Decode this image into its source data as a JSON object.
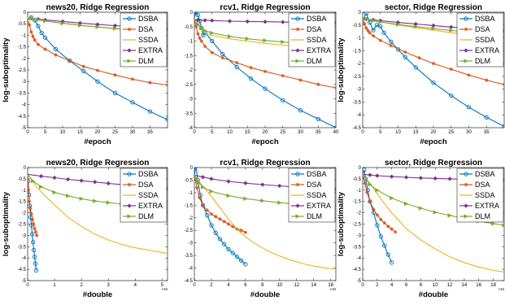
{
  "legend_labels": [
    "DSBA",
    "DSA",
    "SSDA",
    "EXTRA",
    "DLM"
  ],
  "colors": {
    "DSBA": "#0072BD",
    "DSA": "#D95319",
    "SSDA": "#EDB120",
    "EXTRA": "#7E2F8E",
    "DLM": "#77AC30"
  },
  "chart_data": [
    {
      "type": "line",
      "title": "news20, Ridge Regression",
      "xlabel": "#epoch",
      "ylabel": "log-suboptimality",
      "xlim": [
        0,
        40
      ],
      "ylim": [
        -5,
        0
      ],
      "xticks": [
        "0",
        "5",
        "10",
        "15",
        "20",
        "25",
        "30",
        "35"
      ],
      "yticks": [
        "-5",
        "-4.5",
        "-4",
        "-3.5",
        "-3",
        "-2.5",
        "-2",
        "-1.5",
        "-1",
        "-0.5",
        "0"
      ],
      "x_exponent": "",
      "series": [
        {
          "name": "DSBA",
          "x": [
            0,
            1,
            2,
            3,
            4,
            5,
            8,
            12,
            16,
            20,
            25,
            30,
            35,
            40
          ],
          "y": [
            -0.3,
            -0.22,
            -0.35,
            -0.6,
            -0.9,
            -1.1,
            -1.6,
            -2.1,
            -2.55,
            -3.0,
            -3.5,
            -3.9,
            -4.3,
            -4.65
          ]
        },
        {
          "name": "DSA",
          "x": [
            0,
            0.5,
            1,
            1.5,
            2,
            3,
            5,
            8,
            12,
            16,
            20,
            25,
            30,
            35,
            40
          ],
          "y": [
            -0.3,
            -0.55,
            -0.85,
            -1.05,
            -1.2,
            -1.4,
            -1.6,
            -1.85,
            -2.1,
            -2.35,
            -2.52,
            -2.72,
            -2.9,
            -3.05,
            -3.15
          ]
        },
        {
          "name": "SSDA",
          "x": [
            0,
            1,
            3,
            5,
            10,
            15,
            20,
            25,
            30,
            35,
            40
          ],
          "y": [
            -0.3,
            -0.27,
            -0.33,
            -0.38,
            -0.48,
            -0.56,
            -0.64,
            -0.72,
            -0.78,
            -0.85,
            -0.9
          ]
        },
        {
          "name": "EXTRA",
          "x": [
            0,
            1,
            3,
            5,
            10,
            15,
            20,
            25,
            30,
            35,
            40
          ],
          "y": [
            -0.3,
            -0.27,
            -0.3,
            -0.33,
            -0.4,
            -0.47,
            -0.53,
            -0.58,
            -0.63,
            -0.68,
            -0.72
          ]
        },
        {
          "name": "DLM",
          "x": [
            0,
            1,
            3,
            5,
            10,
            15,
            20,
            25,
            30,
            35,
            40
          ],
          "y": [
            -0.3,
            -0.26,
            -0.32,
            -0.38,
            -0.48,
            -0.57,
            -0.64,
            -0.7,
            -0.76,
            -0.81,
            -0.85
          ]
        }
      ]
    },
    {
      "type": "line",
      "title": "rcv1, Ridge Regression",
      "xlabel": "#epoch",
      "ylabel": "",
      "xlim": [
        0,
        40
      ],
      "ylim": [
        -4,
        0
      ],
      "xticks": [
        "0",
        "5",
        "10",
        "15",
        "20",
        "25",
        "30",
        "35",
        "40"
      ],
      "yticks": [
        "-4",
        "-3.5",
        "-3",
        "-2.5",
        "-2",
        "-1.5",
        "-1",
        "-0.5",
        "0"
      ],
      "x_exponent": "",
      "series": [
        {
          "name": "DSBA",
          "x": [
            0,
            0.5,
            1,
            1.5,
            2,
            2.5,
            3,
            5,
            8,
            12,
            16,
            20,
            25,
            30,
            35,
            40
          ],
          "y": [
            -0.2,
            0.02,
            -0.1,
            -0.3,
            -0.55,
            -0.8,
            -0.7,
            -1.0,
            -1.45,
            -1.9,
            -2.3,
            -2.65,
            -3.05,
            -3.4,
            -3.7,
            -4.0
          ]
        },
        {
          "name": "DSA",
          "x": [
            0,
            0.5,
            1,
            1.5,
            2,
            3,
            5,
            8,
            12,
            16,
            20,
            25,
            30,
            35,
            40
          ],
          "y": [
            -0.25,
            -0.5,
            -0.75,
            -0.9,
            -1.0,
            -1.18,
            -1.4,
            -1.58,
            -1.75,
            -1.92,
            -2.05,
            -2.2,
            -2.35,
            -2.5,
            -2.62
          ]
        },
        {
          "name": "SSDA",
          "x": [
            0,
            1,
            2,
            3,
            5,
            10,
            15,
            20,
            25,
            30,
            35,
            40
          ],
          "y": [
            -0.2,
            -0.45,
            -0.6,
            -0.72,
            -0.8,
            -0.92,
            -1.0,
            -1.08,
            -1.14,
            -1.2,
            -1.25,
            -1.28
          ]
        },
        {
          "name": "EXTRA",
          "x": [
            0,
            1,
            3,
            5,
            10,
            15,
            20,
            25,
            30,
            35,
            40
          ],
          "y": [
            -0.25,
            -0.27,
            -0.28,
            -0.29,
            -0.31,
            -0.32,
            -0.33,
            -0.34,
            -0.35,
            -0.36,
            -0.36
          ]
        },
        {
          "name": "DLM",
          "x": [
            0,
            1,
            2,
            3,
            5,
            10,
            15,
            20,
            25,
            30,
            35,
            40
          ],
          "y": [
            -0.2,
            -0.42,
            -0.55,
            -0.64,
            -0.72,
            -0.84,
            -0.92,
            -0.98,
            -1.03,
            -1.08,
            -1.12,
            -1.15
          ]
        }
      ]
    },
    {
      "type": "line",
      "title": "sector, Ridge Regression",
      "xlabel": "#epoch",
      "ylabel": "log-suboptimality",
      "xlim": [
        0,
        40
      ],
      "ylim": [
        -4.5,
        0
      ],
      "xticks": [
        "0",
        "5",
        "10",
        "15",
        "20",
        "25",
        "30",
        "35"
      ],
      "yticks": [
        "-4.5",
        "-4",
        "-3.5",
        "-3",
        "-2.5",
        "-2",
        "-1.5",
        "-1",
        "-0.5",
        "0"
      ],
      "x_exponent": "",
      "series": [
        {
          "name": "DSBA",
          "x": [
            0,
            1,
            2,
            3,
            4,
            5,
            6,
            8,
            10,
            12,
            15,
            20,
            25,
            30,
            35,
            40
          ],
          "y": [
            -0.3,
            -0.05,
            -0.4,
            -0.7,
            -0.5,
            -0.55,
            -0.8,
            -1.15,
            -1.45,
            -1.75,
            -2.15,
            -2.75,
            -3.25,
            -3.7,
            -4.1,
            -4.45
          ]
        },
        {
          "name": "DSA",
          "x": [
            0,
            0.5,
            1,
            1.5,
            2,
            3,
            5,
            8,
            12,
            16,
            20,
            25,
            30,
            35,
            40
          ],
          "y": [
            -0.3,
            -0.45,
            -0.62,
            -0.72,
            -0.8,
            -0.92,
            -1.1,
            -1.3,
            -1.55,
            -1.78,
            -2.0,
            -2.22,
            -2.45,
            -2.65,
            -2.82
          ]
        },
        {
          "name": "SSDA",
          "x": [
            0,
            1,
            3,
            5,
            10,
            15,
            20,
            25,
            30,
            35,
            40
          ],
          "y": [
            -0.3,
            -0.27,
            -0.33,
            -0.38,
            -0.5,
            -0.6,
            -0.7,
            -0.8,
            -0.9,
            -0.98,
            -1.05
          ]
        },
        {
          "name": "EXTRA",
          "x": [
            0,
            1,
            3,
            5,
            10,
            15,
            20,
            25,
            30,
            35,
            40
          ],
          "y": [
            -0.3,
            -0.27,
            -0.3,
            -0.33,
            -0.4,
            -0.46,
            -0.52,
            -0.58,
            -0.63,
            -0.68,
            -0.72
          ]
        },
        {
          "name": "DLM",
          "x": [
            0,
            1,
            3,
            5,
            10,
            15,
            20,
            25,
            30,
            35,
            40
          ],
          "y": [
            -0.3,
            -0.26,
            -0.33,
            -0.38,
            -0.48,
            -0.56,
            -0.64,
            -0.71,
            -0.77,
            -0.83,
            -0.88
          ]
        }
      ]
    },
    {
      "type": "line",
      "title": "news20, Ridge Regression",
      "xlabel": "#double",
      "ylabel": "log-suboptimality",
      "xlim": [
        0,
        5.2
      ],
      "ylim": [
        -5,
        0
      ],
      "xticks": [
        "0",
        "1",
        "2",
        "3",
        "4",
        "5"
      ],
      "yticks": [
        "-5",
        "-4.5",
        "-4",
        "-3.5",
        "-3",
        "-2.5",
        "-2",
        "-1.5",
        "-1",
        "-0.5",
        "0"
      ],
      "x_exponent": "×10",
      "series": [
        {
          "name": "DSBA",
          "x": [
            0,
            0.02,
            0.05,
            0.08,
            0.11,
            0.14,
            0.17,
            0.2,
            0.23,
            0.26,
            0.29,
            0.32
          ],
          "y": [
            -0.3,
            -0.6,
            -1.2,
            -1.7,
            -2.2,
            -2.55,
            -2.95,
            -3.3,
            -3.65,
            -3.95,
            -4.25,
            -4.55
          ]
        },
        {
          "name": "DSA",
          "x": [
            0,
            0.03,
            0.06,
            0.1,
            0.14,
            0.18,
            0.22,
            0.26,
            0.3,
            0.34
          ],
          "y": [
            -0.3,
            -1.0,
            -1.5,
            -1.8,
            -2.05,
            -2.3,
            -2.5,
            -2.7,
            -2.85,
            -3.0
          ]
        },
        {
          "name": "SSDA",
          "x": [
            0,
            0.3,
            0.6,
            1.0,
            1.5,
            2.0,
            2.5,
            3.0,
            3.5,
            4.0,
            4.5,
            5.2
          ],
          "y": [
            -0.3,
            -0.8,
            -1.2,
            -1.65,
            -2.2,
            -2.6,
            -2.95,
            -3.2,
            -3.4,
            -3.55,
            -3.65,
            -3.8
          ]
        },
        {
          "name": "EXTRA",
          "x": [
            0,
            0.5,
            1.0,
            1.5,
            2.0,
            2.5,
            3.0,
            3.5,
            4.0,
            4.5,
            5.2
          ],
          "y": [
            -0.3,
            -0.38,
            -0.45,
            -0.52,
            -0.58,
            -0.64,
            -0.7,
            -0.75,
            -0.8,
            -0.85,
            -0.92
          ]
        },
        {
          "name": "DLM",
          "x": [
            0,
            0.2,
            0.5,
            1.0,
            1.5,
            2.0,
            2.5,
            3.0,
            3.5,
            4.0,
            4.5,
            5.2
          ],
          "y": [
            -0.3,
            -0.6,
            -0.85,
            -1.1,
            -1.25,
            -1.38,
            -1.48,
            -1.55,
            -1.62,
            -1.67,
            -1.72,
            -1.78
          ]
        }
      ]
    },
    {
      "type": "line",
      "title": "rcv1, Ridge Regression",
      "xlabel": "#double",
      "ylabel": "",
      "xlim": [
        0,
        16.6
      ],
      "ylim": [
        -4.5,
        0
      ],
      "xticks": [
        "0",
        "2",
        "4",
        "6",
        "8",
        "10",
        "12",
        "14",
        "16"
      ],
      "yticks": [
        "-4.5",
        "-4",
        "-3.5",
        "-3",
        "-2.5",
        "-2",
        "-1.5",
        "-1",
        "-0.5",
        "0"
      ],
      "x_exponent": "×10",
      "series": [
        {
          "name": "DSBA",
          "x": [
            0,
            0.2,
            0.4,
            0.7,
            1.0,
            1.5,
            2.0,
            2.5,
            3.0,
            3.5,
            4.0,
            4.5,
            5.0,
            5.5,
            6.0
          ],
          "y": [
            -0.3,
            0.05,
            -0.5,
            -1.1,
            -1.5,
            -1.9,
            -2.3,
            -2.6,
            -2.85,
            -3.05,
            -3.25,
            -3.4,
            -3.55,
            -3.7,
            -3.85
          ]
        },
        {
          "name": "DSA",
          "x": [
            0,
            0.3,
            0.6,
            1.0,
            1.5,
            2.0,
            2.5,
            3.0,
            3.5,
            4.0,
            4.5,
            5.0,
            5.5,
            6.0
          ],
          "y": [
            -0.3,
            -0.8,
            -1.2,
            -1.5,
            -1.7,
            -1.85,
            -1.95,
            -2.05,
            -2.15,
            -2.25,
            -2.35,
            -2.45,
            -2.5,
            -2.58
          ]
        },
        {
          "name": "SSDA",
          "x": [
            0,
            1,
            2,
            3,
            4,
            5,
            6,
            7,
            8,
            9,
            10,
            11,
            12,
            13,
            14,
            15,
            16.6
          ],
          "y": [
            -0.3,
            -0.75,
            -1.15,
            -1.6,
            -2.05,
            -2.45,
            -2.75,
            -3.0,
            -3.2,
            -3.38,
            -3.52,
            -3.65,
            -3.75,
            -3.85,
            -3.92,
            -3.98,
            -4.05
          ]
        },
        {
          "name": "EXTRA",
          "x": [
            0,
            1,
            2,
            4,
            6,
            8,
            10,
            12,
            14,
            16.6
          ],
          "y": [
            -0.3,
            -0.38,
            -0.45,
            -0.55,
            -0.62,
            -0.68,
            -0.73,
            -0.78,
            -0.82,
            -0.86
          ]
        },
        {
          "name": "DLM",
          "x": [
            0,
            0.5,
            1,
            2,
            4,
            6,
            8,
            10,
            12,
            14,
            16.6
          ],
          "y": [
            -0.3,
            -0.6,
            -0.78,
            -0.95,
            -1.12,
            -1.24,
            -1.32,
            -1.4,
            -1.46,
            -1.52,
            -1.56
          ]
        }
      ]
    },
    {
      "type": "line",
      "title": "sector, Ridge Regression",
      "xlabel": "#double",
      "ylabel": "log-suboptimality",
      "xlim": [
        0,
        19.5
      ],
      "ylim": [
        -5,
        0
      ],
      "xticks": [
        "0",
        "2",
        "4",
        "6",
        "8",
        "10",
        "12",
        "14",
        "16",
        "18"
      ],
      "yticks": [
        "-5",
        "-4.5",
        "-4",
        "-3.5",
        "-3",
        "-2.5",
        "-2",
        "-1.5",
        "-1",
        "-0.5",
        "0"
      ],
      "x_exponent": "×10",
      "series": [
        {
          "name": "DSBA",
          "x": [
            0,
            0.2,
            0.4,
            0.7,
            1.0,
            1.5,
            2.0,
            2.5,
            3.0,
            3.5,
            4.0
          ],
          "y": [
            -0.3,
            -0.1,
            -0.5,
            -1.0,
            -1.5,
            -2.0,
            -2.55,
            -3.05,
            -3.45,
            -3.85,
            -4.2
          ]
        },
        {
          "name": "DSA",
          "x": [
            0,
            0.3,
            0.6,
            1.0,
            1.5,
            2.0,
            2.5,
            3.0,
            3.5,
            4.0,
            4.5
          ],
          "y": [
            -0.3,
            -0.7,
            -1.1,
            -1.5,
            -1.85,
            -2.1,
            -2.3,
            -2.45,
            -2.6,
            -2.72,
            -2.85
          ]
        },
        {
          "name": "SSDA",
          "x": [
            0,
            1,
            2,
            3,
            4,
            5,
            6,
            8,
            10,
            12,
            14,
            16,
            18,
            19.5
          ],
          "y": [
            -0.3,
            -0.7,
            -1.15,
            -1.6,
            -2.0,
            -2.35,
            -2.7,
            -3.2,
            -3.6,
            -3.95,
            -4.2,
            -4.4,
            -4.55,
            -4.62
          ]
        },
        {
          "name": "EXTRA",
          "x": [
            0,
            1,
            2,
            4,
            6,
            8,
            10,
            12,
            14,
            16,
            18,
            19.5
          ],
          "y": [
            -0.3,
            -0.33,
            -0.36,
            -0.4,
            -0.43,
            -0.46,
            -0.48,
            -0.5,
            -0.52,
            -0.54,
            -0.56,
            -0.57
          ]
        },
        {
          "name": "DLM",
          "x": [
            0,
            1,
            2,
            4,
            6,
            8,
            10,
            12,
            14,
            16,
            18,
            19.5
          ],
          "y": [
            -0.3,
            -0.75,
            -1.0,
            -1.35,
            -1.6,
            -1.8,
            -1.98,
            -2.12,
            -2.25,
            -2.37,
            -2.48,
            -2.55
          ]
        }
      ]
    }
  ]
}
